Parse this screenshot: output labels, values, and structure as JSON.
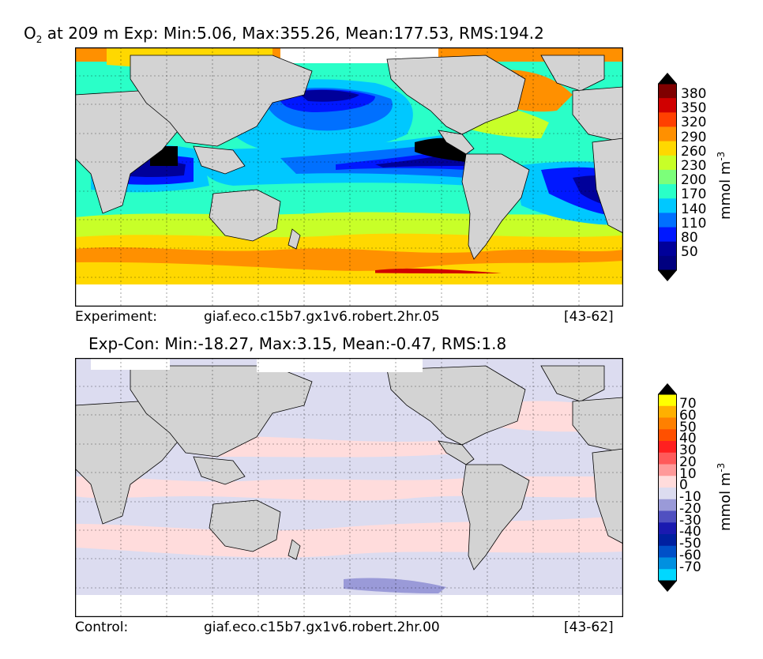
{
  "top": {
    "title_var": "O",
    "title_sub": "2",
    "title_rest": " at 209 m Exp: Min:5.06, Max:355.26, Mean:177.53, RMS:194.2",
    "footer_left": "Experiment:",
    "footer_mid": "giaf.eco.c15b7.gx1v6.robert.2hr.05",
    "footer_right": "[43-62]",
    "colorbar_label": "mmol m",
    "colorbar_label_sup": "-3",
    "colorbar_ticks": [
      "380",
      "350",
      "320",
      "290",
      "260",
      "230",
      "200",
      "170",
      "140",
      "110",
      "80",
      "50"
    ],
    "colorbar_colors": [
      "#7f0000",
      "#d00000",
      "#ff4000",
      "#ff9000",
      "#ffd800",
      "#c8ff28",
      "#7cff7a",
      "#2affc8",
      "#00c8ff",
      "#0070ff",
      "#0018ff",
      "#00009a",
      "#000080"
    ],
    "colorbar_min_color": "#000060",
    "colorbar_max_color": "#000000",
    "land_color": "#d3d3d3"
  },
  "bottom": {
    "title": "Exp-Con: Min:-18.27, Max:3.15, Mean:-0.47, RMS:1.8",
    "footer_left": "Control:",
    "footer_mid": "giaf.eco.c15b7.gx1v6.robert.2hr.00",
    "footer_right": "[43-62]",
    "colorbar_label": "mmol m",
    "colorbar_label_sup": "-3",
    "colorbar_ticks": [
      "70",
      "60",
      "50",
      "40",
      "30",
      "20",
      "10",
      "0",
      "-10",
      "-20",
      "-30",
      "-40",
      "-50",
      "-60",
      "-70"
    ],
    "colorbar_colors": [
      "#ffff00",
      "#ffb000",
      "#ff8000",
      "#ff5000",
      "#ff2020",
      "#ff5a5a",
      "#ff9a9a",
      "#ffdcdc",
      "#dcdcf0",
      "#9a9ad8",
      "#5050c0",
      "#1a1ab0",
      "#0020a0",
      "#0050c8",
      "#0090e0",
      "#00d8ff"
    ],
    "land_color": "#d3d3d3"
  }
}
